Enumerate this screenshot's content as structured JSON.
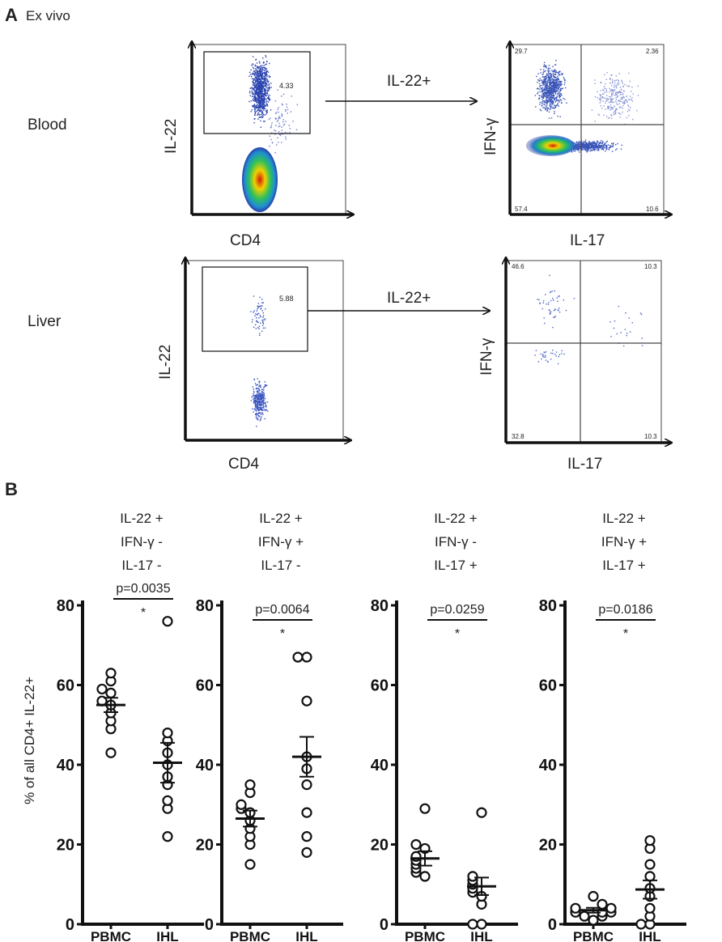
{
  "panel_a": {
    "label": "A",
    "subtitle": "Ex vivo",
    "arrow_label": "IL-22+",
    "rows": [
      {
        "name": "Blood",
        "gate_xlabel": "CD4",
        "gate_ylabel": "IL-22",
        "gate_value": "4.33",
        "quad_xlabel": "IL-17",
        "quad_ylabel": "IFN-γ",
        "quadrants": {
          "top_left": "29.7",
          "top_right": "2.36",
          "bottom_left": "57.4",
          "bottom_right": "10.6"
        }
      },
      {
        "name": "Liver",
        "gate_xlabel": "CD4",
        "gate_ylabel": "IL-22",
        "gate_value": "5.88",
        "quad_xlabel": "IL-17",
        "quad_ylabel": "IFN-γ",
        "quadrants": {
          "top_left": "46.6",
          "top_right": "10.3",
          "bottom_left": "32.8",
          "bottom_right": "10.3"
        }
      }
    ]
  },
  "panel_b": {
    "label": "B",
    "ylabel": "% of all CD4+ IL-22+"
  },
  "chart_data": [
    {
      "type": "scatter",
      "title_lines": [
        "IL-22 +",
        "IFN-γ -",
        "IL-17 -"
      ],
      "categories": [
        "PBMC",
        "IHL"
      ],
      "ylim": [
        0,
        80
      ],
      "yticks": [
        0,
        20,
        40,
        60,
        80
      ],
      "ylabel": "% of all CD4+ IL-22+",
      "pvalue": "p=0.0035",
      "significance": "*",
      "series": [
        {
          "name": "PBMC",
          "values": [
            63,
            61,
            59,
            58,
            56,
            55,
            53,
            51,
            49,
            43
          ],
          "mean": 55,
          "sem": 1.8
        },
        {
          "name": "IHL",
          "values": [
            76,
            48,
            46,
            43,
            40,
            37,
            35,
            31,
            29,
            22
          ],
          "mean": 40.5,
          "sem": 5
        }
      ]
    },
    {
      "type": "scatter",
      "title_lines": [
        "IL-22 +",
        "IFN-γ +",
        "IL-17 -"
      ],
      "categories": [
        "PBMC",
        "IHL"
      ],
      "ylim": [
        0,
        80
      ],
      "yticks": [
        0,
        20,
        40,
        60,
        80
      ],
      "ylabel": "",
      "pvalue": "p=0.0064",
      "significance": "*",
      "series": [
        {
          "name": "PBMC",
          "values": [
            35,
            33,
            30,
            29,
            28,
            26,
            24,
            22,
            20,
            15
          ],
          "mean": 26.5,
          "sem": 2
        },
        {
          "name": "IHL",
          "values": [
            67,
            67,
            56,
            42,
            39,
            35,
            28,
            22,
            18
          ],
          "mean": 42,
          "sem": 5
        }
      ]
    },
    {
      "type": "scatter",
      "title_lines": [
        "IL-22 +",
        "IFN-γ -",
        "IL-17 +"
      ],
      "categories": [
        "PBMC",
        "IHL"
      ],
      "ylim": [
        0,
        80
      ],
      "yticks": [
        0,
        20,
        40,
        60,
        80
      ],
      "ylabel": "",
      "pvalue": "p=0.0259",
      "significance": "*",
      "series": [
        {
          "name": "PBMC",
          "values": [
            29,
            20,
            19,
            17,
            16,
            15,
            14,
            13,
            12
          ],
          "mean": 16.5,
          "sem": 1.8
        },
        {
          "name": "IHL",
          "values": [
            28,
            12,
            11,
            10,
            9,
            8,
            7,
            5,
            0,
            0
          ],
          "mean": 9.5,
          "sem": 2.2
        }
      ]
    },
    {
      "type": "scatter",
      "title_lines": [
        "IL-22 +",
        "IFN-γ +",
        "IL-17 +"
      ],
      "categories": [
        "PBMC",
        "IHL"
      ],
      "ylim": [
        0,
        80
      ],
      "yticks": [
        0,
        20,
        40,
        60,
        80
      ],
      "ylabel": "",
      "pvalue": "p=0.0186",
      "significance": "*",
      "series": [
        {
          "name": "PBMC",
          "values": [
            7,
            5,
            4,
            4,
            3,
            3,
            3,
            2,
            2,
            1
          ],
          "mean": 3.5,
          "sem": 0.6
        },
        {
          "name": "IHL",
          "values": [
            21,
            19,
            15,
            12,
            9,
            7,
            4,
            2,
            0,
            0
          ],
          "mean": 8.7,
          "sem": 2.3
        }
      ]
    }
  ]
}
